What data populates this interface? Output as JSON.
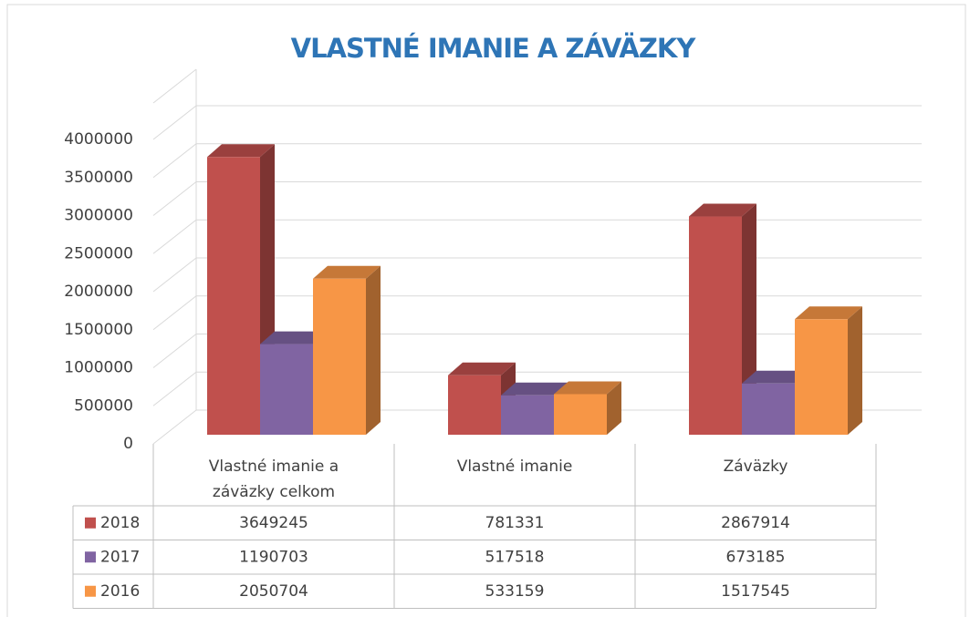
{
  "chart_data": {
    "type": "bar3d",
    "title": "VLASTNÉ IMANIE A ZÁVÄZKY",
    "categories": [
      "Vlastné imanie a záväzky celkom",
      "Vlastné imanie",
      "Záväzky"
    ],
    "series": [
      {
        "name": "2018",
        "color": "#c0504d",
        "values": [
          3649245,
          781331,
          2867914
        ]
      },
      {
        "name": "2017",
        "color": "#8064a2",
        "values": [
          1190703,
          517518,
          673185
        ]
      },
      {
        "name": "2016",
        "color": "#f79646",
        "values": [
          2050704,
          533159,
          1517545
        ]
      }
    ],
    "ylim": [
      0,
      4000000
    ],
    "yticks": [
      0,
      500000,
      1000000,
      1500000,
      2000000,
      2500000,
      3000000,
      3500000,
      4000000
    ],
    "grid": true,
    "data_table": true
  }
}
